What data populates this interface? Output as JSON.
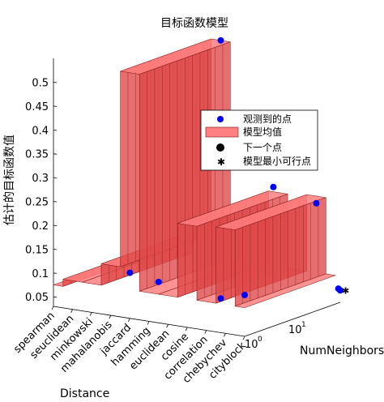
{
  "chart_data": {
    "type": "surface",
    "title": "目标函数模型",
    "zlabel": "估计的目标函数值",
    "xlabel": "Distance",
    "ylabel": "NumNeighbors",
    "zticks": [
      0.05,
      0.1,
      0.15,
      0.2,
      0.25,
      0.3,
      0.35,
      0.4,
      0.45,
      0.5
    ],
    "zlim": [
      0.03,
      0.55
    ],
    "categories": [
      "spearman",
      "seuclidean",
      "minkowski",
      "mahalanobis",
      "jaccard",
      "hamming",
      "euclidean",
      "cosine",
      "correlation",
      "chebychev",
      "cityblock"
    ],
    "y_ticks": [
      {
        "label": "10",
        "exp": "0"
      },
      {
        "label": "10",
        "exp": "1"
      }
    ],
    "y_scale": "log",
    "surface_values": {
      "spearman": 0.075,
      "seuclidean": 0.09,
      "minkowski": 0.09,
      "mahalanobis": 0.135,
      "jaccard": 0.545,
      "hamming": 0.09,
      "euclidean": 0.09,
      "cosine": 0.245,
      "correlation": 0.09,
      "chebychev": 0.25,
      "cityblock": 0.09
    },
    "observed_points_approx": [
      {
        "distance": "mahalanobis",
        "value": 0.105
      },
      {
        "distance": "jaccard",
        "value": 0.085
      },
      {
        "distance": "euclidean",
        "value": 0.045
      },
      {
        "distance": "cosine",
        "value": 0.055
      },
      {
        "distance": "jaccard",
        "value": 0.545
      },
      {
        "distance": "cosine",
        "value": 0.26
      },
      {
        "distance": "chebychev",
        "value": 0.235
      },
      {
        "distance": "cityblock",
        "value": 0.055
      },
      {
        "distance": "cityblock",
        "value": 0.06
      }
    ],
    "legend": {
      "placement": "right",
      "entries": [
        {
          "label": "观测到的点",
          "symbol": "dot",
          "color": "#0000ff"
        },
        {
          "label": "模型均值",
          "symbol": "patch",
          "color": "#ff8080"
        },
        {
          "label": "下一个点",
          "symbol": "dot",
          "color": "#000000"
        },
        {
          "label": "模型最小可行点",
          "symbol": "star",
          "color": "#ff0000"
        }
      ]
    },
    "colors": {
      "surface": "#ff7f7f",
      "mesh": "#7a1010",
      "observed": "#0000ff",
      "minFeasible": "#ff0000"
    }
  }
}
